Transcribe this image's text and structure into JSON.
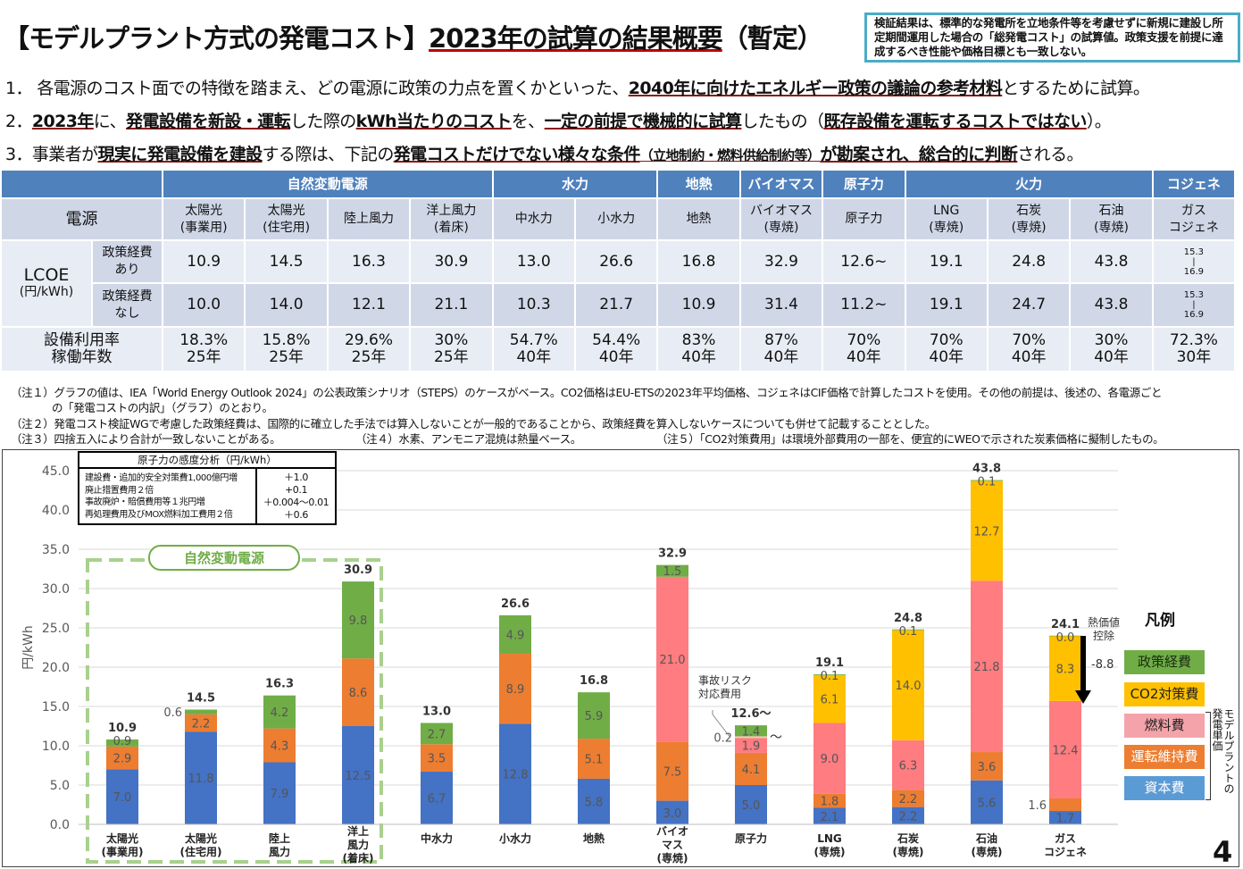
{
  "title": {
    "pre": "【モデルプラント方式の発電コスト】",
    "underlined": "2023年の試算の結果概要",
    "post": "（暫定）"
  },
  "disclaimer": "検証結果は、標準的な発電所を立地条件等を考慮せずに新規に建設し所定期間運用した場合の「総発電コスト」の試算値。政策支援を前提に達成するべき性能や価格目標とも一致しない。",
  "points": [
    [
      {
        "t": "1． 各電源のコスト面での特徴を踏まえ、どの電源に政策の力点を置くかといった、"
      },
      {
        "t": "2040年に向けたエネルギー政策の議論の参考材料",
        "b": 1
      },
      {
        "t": "とするために試算。"
      }
    ],
    [
      {
        "t": "2．"
      },
      {
        "t": "2023年",
        "b": 1
      },
      {
        "t": "に、"
      },
      {
        "t": "発電設備を新設・運転",
        "b": 1
      },
      {
        "t": "した際の"
      },
      {
        "t": "kWh当たりのコスト",
        "b": 1
      },
      {
        "t": "を、"
      },
      {
        "t": "一定の前提で機械的に試算",
        "b": 1
      },
      {
        "t": "したもの（"
      },
      {
        "t": "既存設備を運転するコストではない",
        "b": 1
      },
      {
        "t": "）。"
      }
    ],
    [
      {
        "t": "3．事業者が"
      },
      {
        "t": "現実に発電設備を建設",
        "b": 1
      },
      {
        "t": "する際は、下記の"
      },
      {
        "t": "発電コストだけでない様々な条件",
        "b": 1
      },
      {
        "t": "（立地制約・燃料供給制約等）",
        "s": 1
      },
      {
        "t": "が勘案され、総合的に判断",
        "b": 1
      },
      {
        "t": "される。"
      }
    ]
  ],
  "table": {
    "groups": [
      {
        "label": "自然変動電源",
        "span": 4
      },
      {
        "label": "水力",
        "span": 2
      },
      {
        "label": "地熱",
        "span": 1
      },
      {
        "label": "バイオマス",
        "span": 1
      },
      {
        "label": "原子力",
        "span": 1
      },
      {
        "label": "火力",
        "span": 3
      },
      {
        "label": "コジェネ",
        "span": 1
      }
    ],
    "source_header": "電源",
    "sources": [
      "太陽光\n(事業用)",
      "太陽光\n(住宅用)",
      "陸上風力",
      "洋上風力\n(着床)",
      "中水力",
      "小水力",
      "地熱",
      "バイオマス\n(専焼)",
      "原子力",
      "LNG\n(専焼)",
      "石炭\n(専焼)",
      "石油\n(専焼)",
      "ガス\nコジェネ"
    ],
    "lcoe_label": "LCOE",
    "lcoe_unit": "(円/kWh)",
    "with_policy_label": "政策経費\nあり",
    "with_policy": [
      "10.9",
      "14.5",
      "16.3",
      "30.9",
      "13.0",
      "26.6",
      "16.8",
      "32.9",
      "12.6~",
      "19.1",
      "24.8",
      "43.8",
      "15.3\n|\n16.9"
    ],
    "without_policy_label": "政策経費\nなし",
    "without_policy": [
      "10.0",
      "14.0",
      "12.1",
      "21.1",
      "10.3",
      "21.7",
      "10.9",
      "31.4",
      "11.2~",
      "19.1",
      "24.7",
      "43.8",
      "15.3\n|\n16.9"
    ],
    "usage_label": "設備利用率\n稼働年数",
    "usage": [
      "18.3%\n25年",
      "15.8%\n25年",
      "29.6%\n25年",
      "30%\n25年",
      "54.7%\n40年",
      "54.4%\n40年",
      "83%\n40年",
      "87%\n40年",
      "70%\n40年",
      "70%\n40年",
      "70%\n40年",
      "30%\n40年",
      "72.3%\n30年"
    ]
  },
  "notes": {
    "n1a": "（注１）グラフの値は、IEA「World Energy Outlook 2024」の公表政策シナリオ（STEPS）のケースがベース。CO2価格はEU-ETSの2023年平均価格、コジェネはCIF価格で計算したコストを使用。その他の前提は、後述の、各電源ごと",
    "n1b": "の「発電コストの内訳」（グラフ）のとおり。",
    "n2": "（注２）発電コスト検証WGで考慮した政策経費は、国際的に確立した手法では算入しないことが一般的であることから、政策経費を算入しないケースについても併せて記載することとした。",
    "n3": "（注３）四捨五入により合計が一致しないことがある。",
    "n4": "（注４）水素、アンモニア混焼は熱量ベース。",
    "n5": "（注５）「CO2対策費用」は環境外部費用の一部を、便宜的にWEOで示された炭素価格に擬制したもの。"
  },
  "sensitivity": {
    "title": "原子力の感度分析（円/kWh）",
    "items": [
      "建設費・追加的安全対策費1,000億円増",
      "廃止措置費用２倍",
      "事故廃炉・賠償費用等１兆円増",
      "再処理費用及びMOX燃料加工費用２倍"
    ],
    "values": [
      "＋1.0",
      "+0.1",
      "＋0.004～0.01",
      "＋0.6"
    ]
  },
  "natural_group_label": "自然変動電源",
  "accident_note": "事故リスク\n対応費用",
  "heat_deduction": {
    "label": "熱価値\n控除",
    "value": "-8.8"
  },
  "legend_title": "凡例",
  "bracket_label": "モデルプラントの\n発電単価",
  "page_number": "4",
  "chart_data": {
    "type": "bar",
    "stacked": true,
    "ylabel": "円/kWh",
    "ylim": [
      0,
      45
    ],
    "yticks": [
      "0.0",
      "5.0",
      "10.0",
      "15.0",
      "20.0",
      "25.0",
      "30.0",
      "35.0",
      "40.0",
      "45.0"
    ],
    "grid": true,
    "legend": "right",
    "categories": [
      "太陽光\n(事業用)",
      "太陽光\n(住宅用)",
      "陸上\n風力",
      "洋上\n風力\n(着床)",
      "中水力",
      "小水力",
      "地熱",
      "バイオ\nマス\n(専焼)",
      "原子力",
      "LNG\n(専焼)",
      "石炭\n(専焼)",
      "石油\n(専焼)",
      "ガス\nコジェネ"
    ],
    "totals": [
      "10.9",
      "14.5",
      "16.3",
      "30.9",
      "13.0",
      "26.6",
      "16.8",
      "32.9",
      "12.6～",
      "19.1",
      "24.8",
      "43.8",
      "24.1"
    ],
    "series": [
      {
        "name": "資本費",
        "color": "#4472c4",
        "legend_color": "#5b9bd5",
        "values": [
          7.0,
          11.8,
          7.9,
          12.5,
          6.7,
          12.8,
          5.8,
          3.0,
          5.0,
          2.1,
          2.2,
          5.6,
          1.7
        ]
      },
      {
        "name": "運転維持費",
        "color": "#ed7d31",
        "legend_color": "#ed7d31",
        "values": [
          2.9,
          2.2,
          4.3,
          8.6,
          3.5,
          8.9,
          5.1,
          7.5,
          4.1,
          1.8,
          2.2,
          3.6,
          1.6
        ]
      },
      {
        "name": "燃料費",
        "color": "#ff7c80",
        "legend_color": "#f4a3aa",
        "values": [
          null,
          null,
          null,
          null,
          null,
          null,
          null,
          21.0,
          1.9,
          9.0,
          6.3,
          21.8,
          12.4
        ]
      },
      {
        "name": "事故リスク対応費用",
        "color": "#f8cbad",
        "values": [
          null,
          null,
          null,
          null,
          null,
          null,
          null,
          null,
          0.2,
          null,
          null,
          null,
          null
        ]
      },
      {
        "name": "CO2対策費",
        "color": "#ffc000",
        "legend_color": "#ffc000",
        "values": [
          null,
          null,
          null,
          null,
          null,
          null,
          null,
          null,
          null,
          6.1,
          14.0,
          12.7,
          8.3
        ]
      },
      {
        "name": "政策経費",
        "color": "#70ad47",
        "legend_color": "#70ad47",
        "values": [
          0.9,
          0.6,
          4.2,
          9.8,
          2.7,
          4.9,
          5.9,
          1.5,
          1.4,
          0.1,
          0.1,
          0.1,
          0.0
        ]
      }
    ]
  }
}
